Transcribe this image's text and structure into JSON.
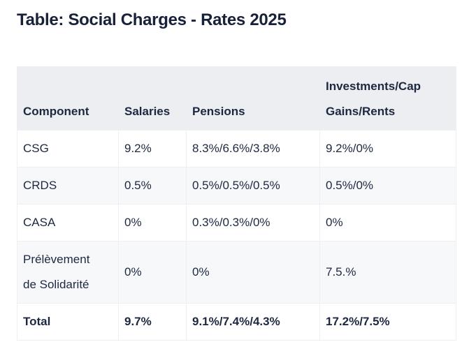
{
  "page": {
    "title": "Table: Social Charges - Rates 2025"
  },
  "table": {
    "headers": [
      "Component",
      "Salaries",
      "Pensions",
      "Investments/Cap Gains/Rents"
    ],
    "rows": [
      {
        "cells": [
          "CSG",
          "9.2%",
          "8.3%/6.6%/3.8%",
          "9.2%/0%"
        ]
      },
      {
        "cells": [
          "CRDS",
          "0.5%",
          "0.5%/0.5%/0.5%",
          "0.5%/0%"
        ]
      },
      {
        "cells": [
          "CASA",
          "0%",
          "0.3%/0.3%/0%",
          "0%"
        ]
      },
      {
        "cells": [
          "Prélèvement de Solidarité",
          "0%",
          "0%",
          "7.5.%"
        ]
      },
      {
        "cells": [
          "Total",
          "9.7%",
          "9.1%/7.4%/4.3%",
          "17.2%/7.5%"
        ]
      }
    ]
  },
  "colors": {
    "title_text": "#18213a",
    "body_text": "#1d2840",
    "header_background": "#eceef2",
    "stripe_background": "#f7f8fa",
    "cell_border": "#edeff4",
    "page_background": "#ffffff"
  }
}
